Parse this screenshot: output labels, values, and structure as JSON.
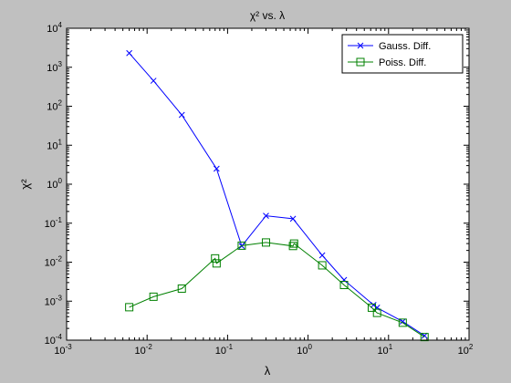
{
  "chart_data": {
    "type": "line",
    "title": "χ² vs. λ",
    "xlabel": "λ",
    "ylabel": "χ²",
    "x_scale": "log",
    "y_scale": "log",
    "xlim": [
      0.001,
      100
    ],
    "ylim": [
      0.0001,
      10000
    ],
    "x_ticks": [
      {
        "value": 0.001,
        "base": "10",
        "exp": "-3"
      },
      {
        "value": 0.01,
        "base": "10",
        "exp": "-2"
      },
      {
        "value": 0.1,
        "base": "10",
        "exp": "-1"
      },
      {
        "value": 1,
        "base": "10",
        "exp": "0"
      },
      {
        "value": 10,
        "base": "10",
        "exp": "1"
      },
      {
        "value": 100,
        "base": "10",
        "exp": "2"
      }
    ],
    "y_ticks": [
      {
        "value": 0.0001,
        "base": "10",
        "exp": "-4"
      },
      {
        "value": 0.001,
        "base": "10",
        "exp": "-3"
      },
      {
        "value": 0.01,
        "base": "10",
        "exp": "-2"
      },
      {
        "value": 0.1,
        "base": "10",
        "exp": "-1"
      },
      {
        "value": 1,
        "base": "10",
        "exp": "0"
      },
      {
        "value": 10,
        "base": "10",
        "exp": "1"
      },
      {
        "value": 100,
        "base": "10",
        "exp": "2"
      },
      {
        "value": 1000,
        "base": "10",
        "exp": "3"
      },
      {
        "value": 10000,
        "base": "10",
        "exp": "4"
      }
    ],
    "grid": false,
    "legend_position": "top-right",
    "series": [
      {
        "name": "Gauss. Diff.",
        "color": "#0000ff",
        "marker": "x",
        "x": [
          0.006,
          0.012,
          0.027,
          0.073,
          0.15,
          0.3,
          0.65,
          1.5,
          2.8,
          6.5,
          7.2,
          15,
          28
        ],
        "y": [
          2300,
          450,
          60,
          2.5,
          0.026,
          0.155,
          0.13,
          0.015,
          0.0035,
          0.0008,
          0.00068,
          0.0003,
          0.00013
        ]
      },
      {
        "name": "Poiss. Diff.",
        "color": "#008000",
        "marker": "square",
        "x": [
          0.006,
          0.012,
          0.027,
          0.07,
          0.073,
          0.15,
          0.3,
          0.65,
          0.67,
          1.5,
          2.8,
          6.2,
          7.2,
          15,
          28
        ],
        "y": [
          0.0007,
          0.0013,
          0.0021,
          0.0125,
          0.0093,
          0.0265,
          0.032,
          0.026,
          0.03,
          0.0083,
          0.0026,
          0.00068,
          0.0005,
          0.00028,
          0.00012
        ]
      }
    ]
  }
}
